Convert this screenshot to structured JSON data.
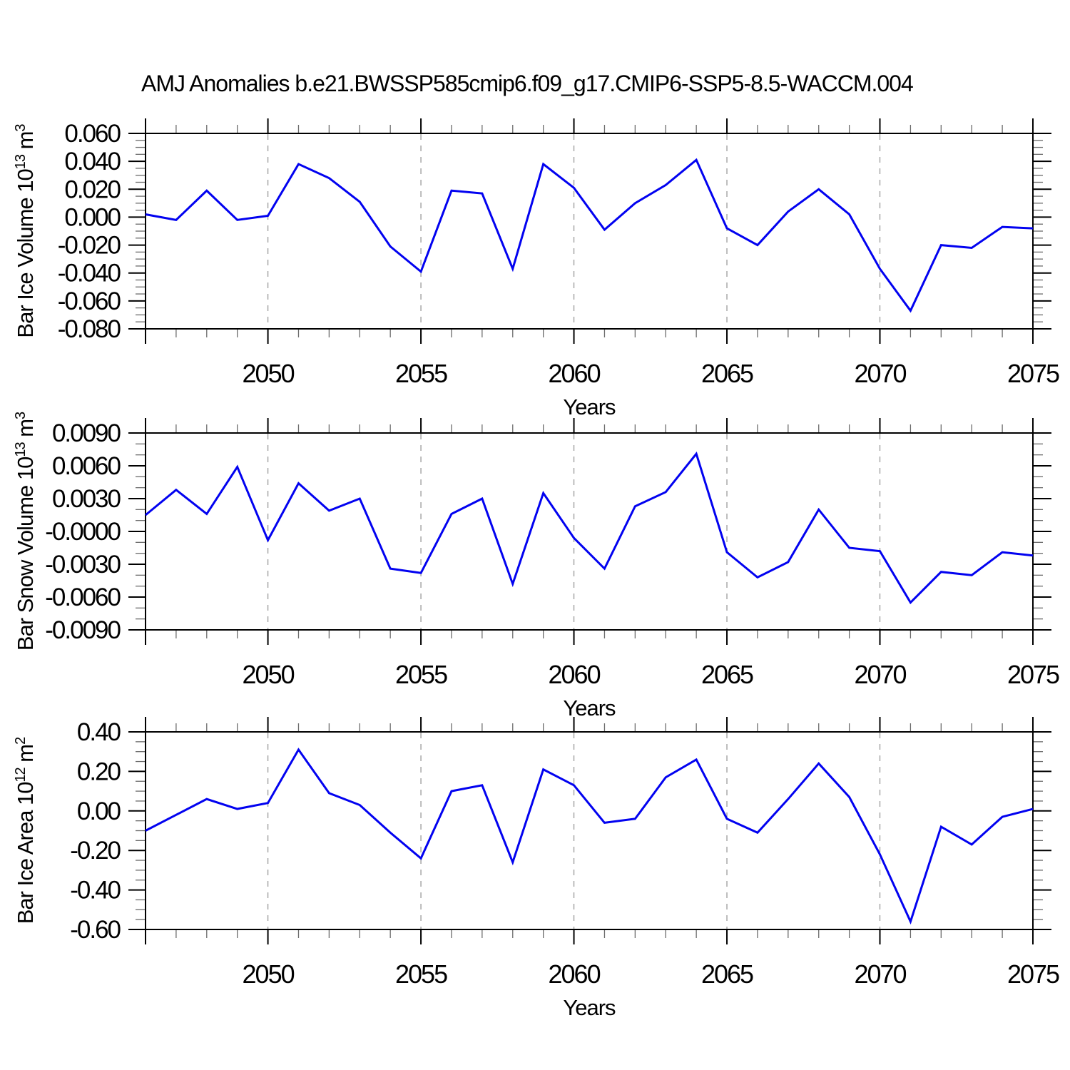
{
  "title": "AMJ Anomalies b.e21.BWSSP585cmip6.f09_g17.CMIP6-SSP5-8.5-WACCM.004",
  "colors": {
    "line": "#0202f0",
    "axis": "#000000",
    "minor_tick": "#6b6b6b",
    "gridline": "#9a9a9a",
    "text": "#000000",
    "background": "#ffffff"
  },
  "x_axis": {
    "label": "Years",
    "start": 2046,
    "end": 2075,
    "major_tick_years": [
      2050,
      2055,
      2060,
      2065,
      2070,
      2075
    ],
    "minor_tick_step_years": 1,
    "dashed_gridline_years": [
      2050,
      2055,
      2060,
      2065,
      2070
    ]
  },
  "chart_data": [
    {
      "type": "line",
      "name": "bar-ice-volume",
      "ylabel": "Bar Ice Volume 10^13 m^3",
      "ylabel_parts": [
        {
          "text": "Bar Ice Volume 10"
        },
        {
          "text": "13",
          "sup": true
        },
        {
          "text": " m"
        },
        {
          "text": "3",
          "sup": true
        }
      ],
      "xlabel": "Years",
      "ylim": [
        -0.08,
        0.06
      ],
      "ytick_step": 0.02,
      "yminor_step": 0.005,
      "ytick_decimals": 3,
      "years": [
        2046,
        2047,
        2048,
        2049,
        2050,
        2051,
        2052,
        2053,
        2054,
        2055,
        2056,
        2057,
        2058,
        2059,
        2060,
        2061,
        2062,
        2063,
        2064,
        2065,
        2066,
        2067,
        2068,
        2069,
        2070,
        2071,
        2072,
        2073,
        2074,
        2075
      ],
      "values": [
        0.002,
        -0.002,
        0.019,
        -0.002,
        0.001,
        0.038,
        0.028,
        0.011,
        -0.021,
        -0.039,
        0.019,
        0.017,
        -0.037,
        0.038,
        0.021,
        -0.009,
        0.01,
        0.023,
        0.041,
        -0.008,
        -0.02,
        0.004,
        0.02,
        0.002,
        -0.037,
        -0.067,
        -0.02,
        -0.022,
        -0.007,
        -0.008
      ]
    },
    {
      "type": "line",
      "name": "bar-snow-volume",
      "ylabel": "Bar Snow Volume 10^13 m^3",
      "ylabel_parts": [
        {
          "text": "Bar Snow Volume 10"
        },
        {
          "text": "13",
          "sup": true
        },
        {
          "text": " m"
        },
        {
          "text": "3",
          "sup": true
        }
      ],
      "xlabel": "Years",
      "ylim": [
        -0.009,
        0.009
      ],
      "ytick_step": 0.003,
      "yminor_step": 0.001,
      "ytick_decimals": 4,
      "years": [
        2046,
        2047,
        2048,
        2049,
        2050,
        2051,
        2052,
        2053,
        2054,
        2055,
        2056,
        2057,
        2058,
        2059,
        2060,
        2061,
        2062,
        2063,
        2064,
        2065,
        2066,
        2067,
        2068,
        2069,
        2070,
        2071,
        2072,
        2073,
        2074,
        2075
      ],
      "values": [
        0.0015,
        0.0038,
        0.0016,
        0.0059,
        -0.0008,
        0.0044,
        0.0019,
        0.003,
        -0.0034,
        -0.0038,
        0.0016,
        0.003,
        -0.0048,
        0.0035,
        -0.0006,
        -0.0034,
        0.0023,
        0.0036,
        0.0071,
        -0.0019,
        -0.0042,
        -0.0028,
        0.002,
        -0.0015,
        -0.0018,
        -0.0065,
        -0.0037,
        -0.004,
        -0.0019,
        -0.0022
      ]
    },
    {
      "type": "line",
      "name": "bar-ice-area",
      "ylabel": "Bar Ice Area 10^12 m^2",
      "ylabel_parts": [
        {
          "text": "Bar Ice Area 10"
        },
        {
          "text": "12",
          "sup": true
        },
        {
          "text": " m"
        },
        {
          "text": "2",
          "sup": true
        }
      ],
      "xlabel": "Years",
      "ylim": [
        -0.6,
        0.4
      ],
      "ytick_step": 0.2,
      "yminor_step": 0.05,
      "ytick_decimals": 2,
      "years": [
        2046,
        2047,
        2048,
        2049,
        2050,
        2051,
        2052,
        2053,
        2054,
        2055,
        2056,
        2057,
        2058,
        2059,
        2060,
        2061,
        2062,
        2063,
        2064,
        2065,
        2066,
        2067,
        2068,
        2069,
        2070,
        2071,
        2072,
        2073,
        2074,
        2075
      ],
      "values": [
        -0.1,
        -0.02,
        0.06,
        0.01,
        0.04,
        0.31,
        0.09,
        0.03,
        -0.11,
        -0.24,
        0.1,
        0.13,
        -0.26,
        0.21,
        0.13,
        -0.06,
        -0.04,
        0.17,
        0.26,
        -0.04,
        -0.11,
        0.06,
        0.24,
        0.07,
        -0.22,
        -0.56,
        -0.08,
        -0.17,
        -0.03,
        0.01
      ]
    }
  ]
}
